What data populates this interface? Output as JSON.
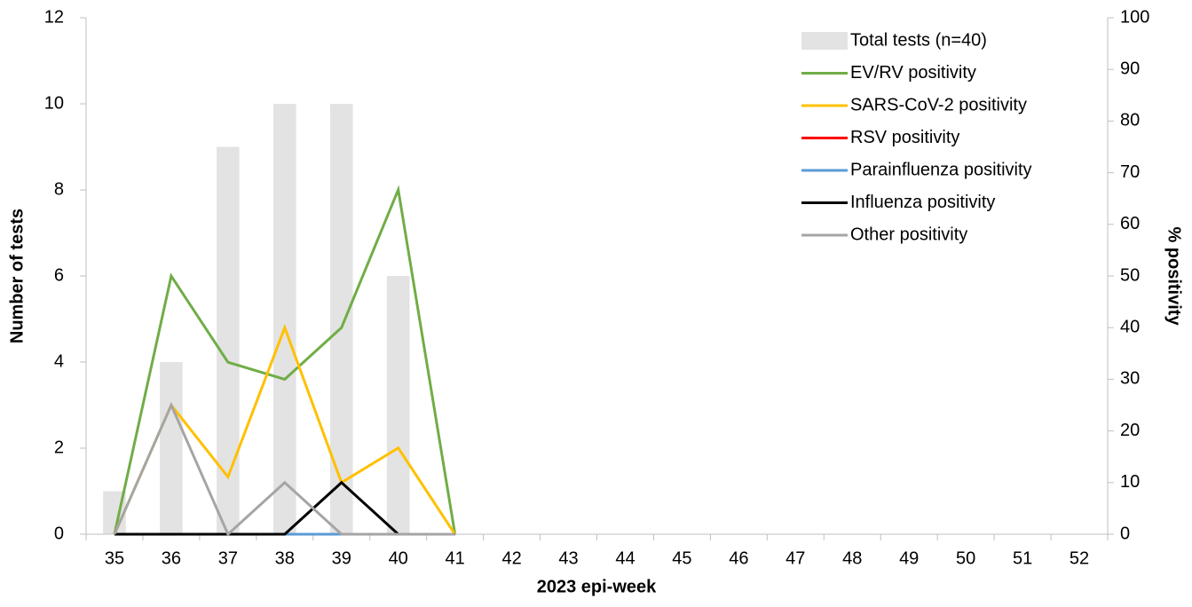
{
  "chart_data": {
    "type": "bar-line",
    "x_label": "2023 epi-week",
    "y_label": "Number of tests",
    "y2_label": "% positivity",
    "categories": [
      35,
      36,
      37,
      38,
      39,
      40,
      41,
      42,
      43,
      44,
      45,
      46,
      47,
      48,
      49,
      50,
      51,
      52
    ],
    "ylim": [
      0,
      12
    ],
    "yticks": [
      0,
      2,
      4,
      6,
      8,
      10,
      12
    ],
    "y2lim": [
      0,
      100
    ],
    "y2ticks": [
      0,
      10,
      20,
      30,
      40,
      50,
      60,
      70,
      80,
      90,
      100
    ],
    "legend": "top-right",
    "series": [
      {
        "name": "Total tests (n=40)",
        "type": "bar",
        "color": "#e3e3e3",
        "values": [
          1,
          4,
          9,
          10,
          10,
          6,
          null,
          null,
          null,
          null,
          null,
          null,
          null,
          null,
          null,
          null,
          null,
          null
        ]
      },
      {
        "name": "EV/RV positivity",
        "type": "line",
        "axis": "y2",
        "color": "#70ad47",
        "values": [
          0,
          50,
          33.3,
          30,
          40,
          66.7,
          0,
          null,
          null,
          null,
          null,
          null,
          null,
          null,
          null,
          null,
          null,
          null
        ]
      },
      {
        "name": "SARS-CoV-2 positivity",
        "type": "line",
        "axis": "y2",
        "color": "#ffc000",
        "values": [
          0,
          25,
          11.1,
          40,
          10,
          16.7,
          0,
          null,
          null,
          null,
          null,
          null,
          null,
          null,
          null,
          null,
          null,
          null
        ]
      },
      {
        "name": "RSV positivity",
        "type": "line",
        "axis": "y2",
        "color": "#ff0000",
        "values": [
          0,
          0,
          0,
          0,
          0,
          0,
          0,
          null,
          null,
          null,
          null,
          null,
          null,
          null,
          null,
          null,
          null,
          null
        ]
      },
      {
        "name": "Parainfluenza positivity",
        "type": "line",
        "axis": "y2",
        "color": "#5b9bd5",
        "values": [
          0,
          0,
          0,
          0,
          0,
          0,
          0,
          null,
          null,
          null,
          null,
          null,
          null,
          null,
          null,
          null,
          null,
          null
        ]
      },
      {
        "name": "Influenza positivity",
        "type": "line",
        "axis": "y2",
        "color": "#000000",
        "values": [
          0,
          0,
          0,
          0,
          10,
          0,
          0,
          null,
          null,
          null,
          null,
          null,
          null,
          null,
          null,
          null,
          null,
          null
        ]
      },
      {
        "name": "Other positivity",
        "type": "line",
        "axis": "y2",
        "color": "#a5a5a5",
        "values": [
          0,
          25,
          0,
          10,
          0,
          0,
          0,
          null,
          null,
          null,
          null,
          null,
          null,
          null,
          null,
          null,
          null,
          null
        ]
      }
    ]
  }
}
